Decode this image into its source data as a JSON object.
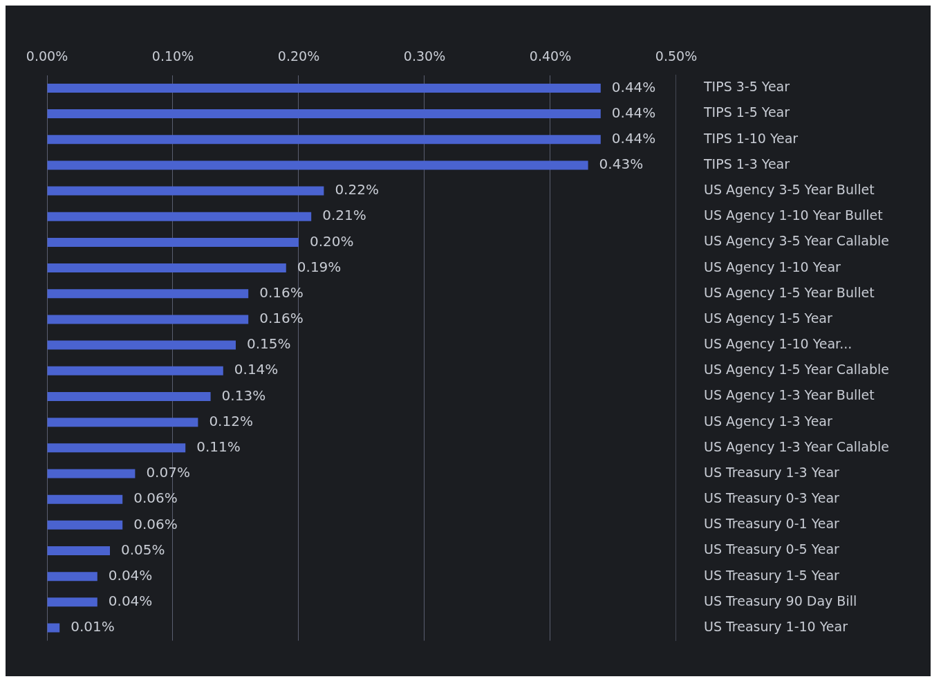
{
  "chart_data": {
    "type": "bar",
    "orientation": "horizontal",
    "categories": [
      "TIPS 3-5 Year",
      "TIPS 1-5 Year",
      "TIPS 1-10 Year",
      "TIPS 1-3 Year",
      "US Agency 3-5 Year Bullet",
      "US Agency 1-10 Year Bullet",
      "US Agency 3-5 Year Callable",
      "US Agency 1-10 Year",
      "US Agency 1-5 Year Bullet",
      "US Agency 1-5 Year",
      "US Agency 1-10 Year...",
      "US Agency 1-5 Year Callable",
      "US Agency 1-3 Year Bullet",
      "US Agency 1-3 Year",
      "US Agency 1-3 Year Callable",
      "US Treasury 1-3 Year",
      "US Treasury 0-3 Year",
      "US Treasury 0-1 Year",
      "US Treasury 0-5 Year",
      "US Treasury 1-5 Year",
      "US Treasury 90 Day Bill",
      "US Treasury 1-10 Year"
    ],
    "values": [
      0.44,
      0.44,
      0.44,
      0.43,
      0.22,
      0.21,
      0.2,
      0.19,
      0.16,
      0.16,
      0.15,
      0.14,
      0.13,
      0.12,
      0.11,
      0.07,
      0.06,
      0.06,
      0.05,
      0.04,
      0.04,
      0.01
    ],
    "value_labels": [
      "0.44%",
      "0.44%",
      "0.44%",
      "0.43%",
      "0.22%",
      "0.21%",
      "0.20%",
      "0.19%",
      "0.16%",
      "0.16%",
      "0.15%",
      "0.14%",
      "0.13%",
      "0.12%",
      "0.11%",
      "0.07%",
      "0.06%",
      "0.06%",
      "0.05%",
      "0.04%",
      "0.04%",
      "0.01%"
    ],
    "color": "#4a63d0",
    "xlim": [
      0,
      0.5
    ],
    "xticks": [
      {
        "value": 0,
        "label": "0.00%"
      },
      {
        "value": 0.1,
        "label": "0.10%"
      },
      {
        "value": 0.2,
        "label": "0.20%"
      },
      {
        "value": 0.3,
        "label": "0.30%"
      },
      {
        "value": 0.4,
        "label": "0.40%"
      },
      {
        "value": 0.5,
        "label": "0.50%"
      }
    ],
    "grid": "x",
    "legend": false
  }
}
